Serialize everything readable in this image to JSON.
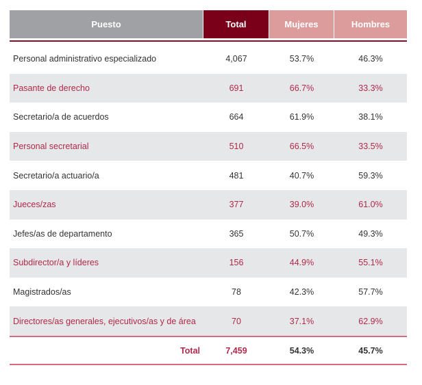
{
  "headers": {
    "puesto": "Puesto",
    "total": "Total",
    "mujeres": "Mujeres",
    "hombres": "Hombres"
  },
  "colors": {
    "header_gray": "#a0a1a5",
    "header_total": "#7a0019",
    "header_pink": "#dc9c9c",
    "accent": "#b0284a"
  },
  "rows": [
    {
      "puesto": "Personal administrativo especializado",
      "total": "4,067",
      "mujeres": "53.7%",
      "hombres": "46.3%"
    },
    {
      "puesto": "Pasante de derecho",
      "total": "691",
      "mujeres": "66.7%",
      "hombres": "33.3%"
    },
    {
      "puesto": "Secretario/a de acuerdos",
      "total": "664",
      "mujeres": "61.9%",
      "hombres": "38.1%"
    },
    {
      "puesto": "Personal secretarial",
      "total": "510",
      "mujeres": "66.5%",
      "hombres": "33.5%"
    },
    {
      "puesto": "Secretario/a actuario/a",
      "total": "481",
      "mujeres": "40.7%",
      "hombres": "59.3%"
    },
    {
      "puesto": "Jueces/zas",
      "total": "377",
      "mujeres": "39.0%",
      "hombres": "61.0%"
    },
    {
      "puesto": "Jefes/as de departamento",
      "total": "365",
      "mujeres": "50.7%",
      "hombres": "49.3%"
    },
    {
      "puesto": "Subdirector/a y líderes",
      "total": "156",
      "mujeres": "44.9%",
      "hombres": "55.1%"
    },
    {
      "puesto": "Magistrados/as",
      "total": "78",
      "mujeres": "42.3%",
      "hombres": "57.7%"
    },
    {
      "puesto": "Directores/as generales, ejecutivos/as y de área",
      "total": "70",
      "mujeres": "37.1%",
      "hombres": "62.9%"
    }
  ],
  "totals": {
    "label": "Total",
    "total": "7,459",
    "mujeres": "54.3%",
    "hombres": "45.7%"
  }
}
